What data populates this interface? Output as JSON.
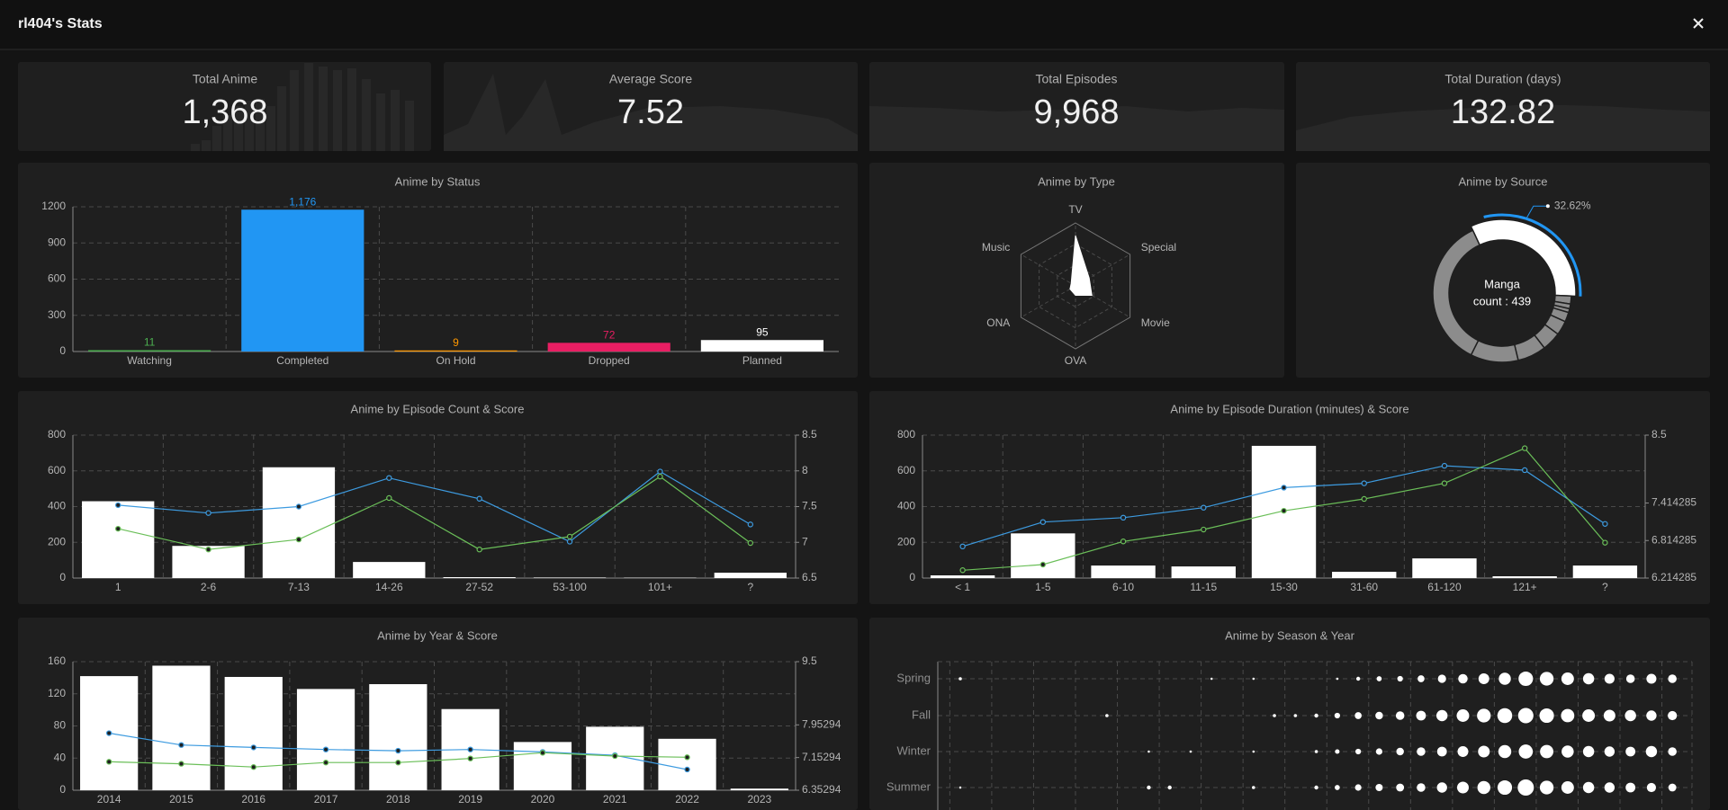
{
  "header": {
    "title": "rl404's Stats"
  },
  "stats": [
    {
      "label": "Total Anime",
      "value": 1368,
      "value_label": "1,368"
    },
    {
      "label": "Average Score",
      "value": 7.52
    },
    {
      "label": "Total Episodes",
      "value": 9968,
      "value_label": "9,968"
    },
    {
      "label": "Total Duration (days)",
      "value": 132.82
    }
  ],
  "chart_data": [
    {
      "type": "bar",
      "title": "Anime by Status",
      "categories": [
        "Watching",
        "Completed",
        "On Hold",
        "Dropped",
        "Planned"
      ],
      "values": [
        11,
        1176,
        9,
        72,
        95
      ],
      "value_labels": [
        "11",
        "1,176",
        "9",
        "72",
        "95"
      ],
      "colors": [
        "#4caf50",
        "#2196f3",
        "#ff9800",
        "#e91e63",
        "#ffffff"
      ],
      "ylim": [
        0,
        1200
      ],
      "yticks": [
        0,
        300,
        600,
        900,
        1200
      ],
      "grid": true
    },
    {
      "type": "radar",
      "title": "Anime by Type",
      "categories": [
        "TV",
        "Special",
        "Movie",
        "OVA",
        "ONA",
        "Music"
      ],
      "values": [
        800,
        250,
        300,
        150,
        100,
        80
      ],
      "rlim": [
        0,
        1000
      ],
      "color": "#ffffff"
    },
    {
      "type": "donut",
      "title": "Anime by Source",
      "values": [
        32.62,
        1.86,
        1.11,
        0.89,
        2.23,
        3.34,
        4.46,
        6.69,
        11.14,
        35.66
      ],
      "value_labels": [
        "32.62%",
        null,
        null,
        null,
        null,
        null,
        null,
        null,
        null,
        null
      ],
      "center_label": [
        "Manga",
        "count : 439"
      ],
      "color": "#ffffff",
      "other_color": "#8c8c8c",
      "highlight_color": "#2196f3"
    },
    {
      "type": "combo",
      "title": "Anime by Episode Count & Score",
      "categories": [
        "1",
        "2-6",
        "7-13",
        "14-26",
        "27-52",
        "53-100",
        "101+",
        "?"
      ],
      "series": [
        {
          "type": "bar",
          "color": "#ffffff",
          "values": [
            430,
            180,
            620,
            90,
            5,
            3,
            2,
            30
          ]
        },
        {
          "type": "line",
          "axis": "y2",
          "color": "#3d9be0",
          "values": [
            7.52,
            7.41,
            7.5,
            7.9,
            7.61,
            7.01,
            7.99,
            7.25
          ]
        },
        {
          "type": "line",
          "axis": "y2",
          "color": "#6bbf59",
          "values": [
            7.19,
            6.9,
            7.04,
            7.62,
            6.9,
            7.08,
            7.92,
            6.99
          ]
        }
      ],
      "ylim": [
        0,
        800
      ],
      "yticks": [
        0,
        200,
        400,
        600,
        800
      ],
      "y2lim": [
        6.5,
        8.5
      ],
      "y2ticks": [
        6.5,
        7,
        7.5,
        8,
        8.5
      ],
      "grid": true
    },
    {
      "type": "combo",
      "title": "Anime by Episode Duration (minutes) & Score",
      "categories": [
        "< 1",
        "1-5",
        "6-10",
        "11-15",
        "15-30",
        "31-60",
        "61-120",
        "121+",
        "?"
      ],
      "series": [
        {
          "type": "bar",
          "color": "#ffffff",
          "values": [
            15,
            250,
            70,
            65,
            740,
            35,
            110,
            10,
            70
          ]
        },
        {
          "type": "line",
          "axis": "y2",
          "color": "#3d9be0",
          "values": [
            6.72,
            7.11,
            7.18,
            7.34,
            7.66,
            7.73,
            8.01,
            7.94,
            7.08
          ]
        },
        {
          "type": "line",
          "axis": "y2",
          "color": "#6bbf59",
          "values": [
            6.34,
            6.43,
            6.8,
            6.99,
            7.29,
            7.48,
            7.73,
            8.29,
            6.78
          ]
        }
      ],
      "ylim": [
        0,
        800
      ],
      "yticks": [
        0,
        200,
        400,
        600,
        800
      ],
      "y2lim": [
        6.2142857,
        8.5
      ],
      "y2ticks": [
        {
          "value": 6.2142857,
          "label": "6.214285"
        },
        {
          "value": 6.8142857,
          "label": "6.814285"
        },
        {
          "value": 7.4142857,
          "label": "7.414285"
        },
        8.5
      ],
      "grid": true
    },
    {
      "type": "combo",
      "title": "Anime by Year & Score",
      "categories": [
        "2014",
        "2015",
        "2016",
        "2017",
        "2018",
        "2019",
        "2020",
        "2021",
        "2022",
        "2023"
      ],
      "series": [
        {
          "type": "bar",
          "color": "#ffffff",
          "values": [
            142,
            155,
            141,
            126,
            132,
            101,
            60,
            79,
            64,
            2
          ]
        },
        {
          "type": "line",
          "axis": "y2",
          "color": "#3d9be0",
          "values": [
            7.75,
            7.46,
            7.4,
            7.35,
            7.32,
            7.35,
            7.29,
            7.21,
            6.86,
            null
          ]
        },
        {
          "type": "line",
          "axis": "y2",
          "color": "#6bbf59",
          "values": [
            7.05,
            7.0,
            6.92,
            7.03,
            7.03,
            7.13,
            7.27,
            7.19,
            7.16,
            null
          ]
        }
      ],
      "ylim": [
        0,
        160
      ],
      "yticks": [
        0,
        40,
        80,
        120,
        160
      ],
      "y2lim": [
        6.3529412,
        9.5
      ],
      "y2ticks": [
        {
          "value": 6.3529412,
          "label": "6.35294"
        },
        {
          "value": 7.1529412,
          "label": "7.15294"
        },
        {
          "value": 7.9529412,
          "label": "7.95294"
        },
        9.5
      ],
      "grid": true
    },
    {
      "type": "bubble",
      "title": "Anime by Season & Year",
      "color": "#ffffff",
      "categories": [
        null,
        null,
        null,
        null,
        null,
        null,
        null,
        null,
        null,
        null,
        null,
        null,
        null,
        null,
        null,
        null,
        null,
        null,
        null,
        null,
        null,
        null,
        null,
        null,
        null,
        null,
        null,
        null,
        null,
        null,
        null,
        null,
        null,
        null,
        null
      ],
      "series": [
        {
          "name": "Spring",
          "values": [
            2,
            null,
            null,
            null,
            null,
            null,
            null,
            null,
            null,
            null,
            null,
            null,
            1,
            null,
            1,
            null,
            null,
            null,
            1,
            3,
            5,
            6,
            9,
            13,
            17,
            22,
            28,
            40,
            36,
            30,
            24,
            19,
            14,
            19,
            14
          ]
        },
        {
          "name": "Fall",
          "values": [
            null,
            null,
            null,
            null,
            null,
            null,
            null,
            2,
            null,
            null,
            null,
            null,
            null,
            null,
            null,
            2,
            2,
            3,
            6,
            9,
            11,
            14,
            18,
            24,
            30,
            36,
            42,
            45,
            40,
            34,
            30,
            26,
            24,
            20,
            16
          ]
        },
        {
          "name": "Winter",
          "values": [
            null,
            null,
            null,
            null,
            null,
            null,
            null,
            null,
            null,
            1,
            null,
            1,
            null,
            null,
            1,
            null,
            null,
            2,
            4,
            6,
            8,
            11,
            14,
            18,
            22,
            26,
            32,
            38,
            34,
            28,
            24,
            20,
            18,
            24,
            14
          ]
        },
        {
          "name": "Summer",
          "values": [
            1,
            null,
            null,
            null,
            null,
            null,
            null,
            null,
            null,
            3,
            3,
            null,
            null,
            null,
            2,
            null,
            null,
            3,
            5,
            8,
            10,
            12,
            14,
            20,
            26,
            32,
            40,
            50,
            36,
            30,
            24,
            20,
            18,
            16,
            12
          ]
        }
      ]
    }
  ]
}
